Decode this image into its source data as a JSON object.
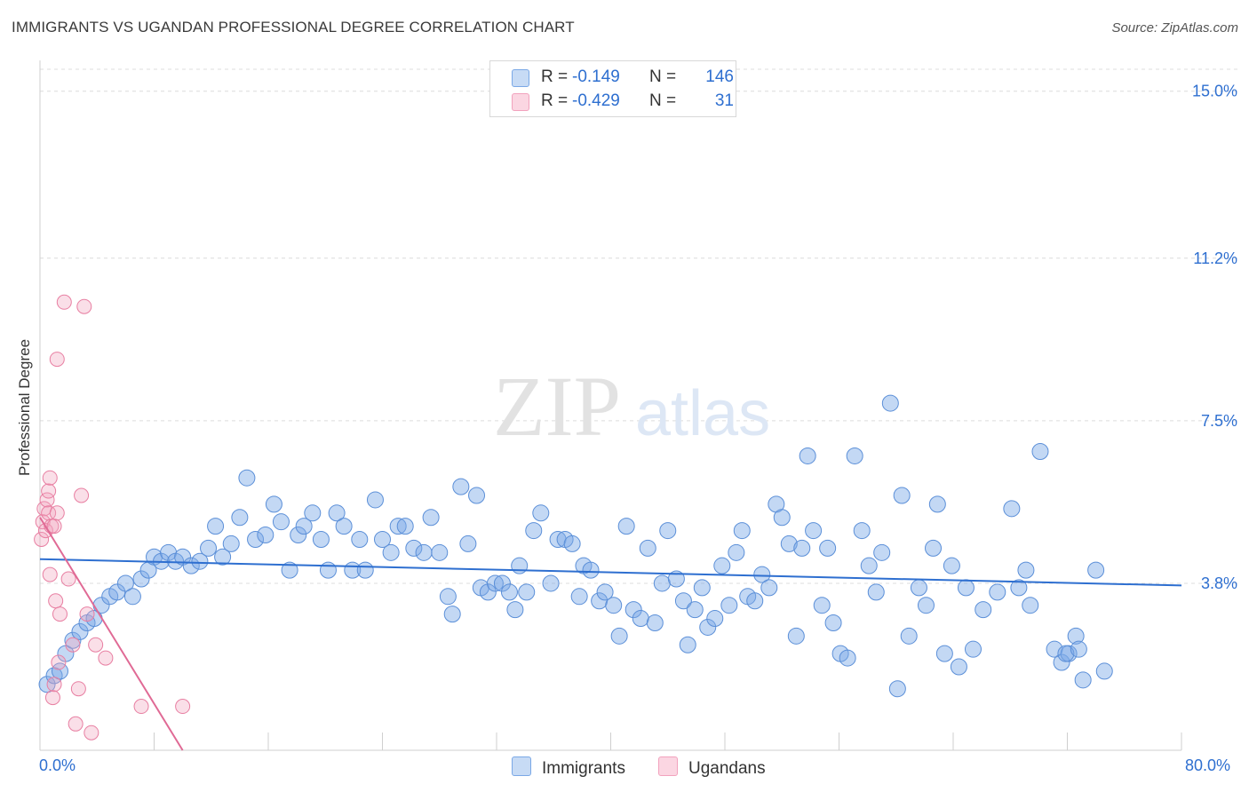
{
  "title": "IMMIGRANTS VS UGANDAN PROFESSIONAL DEGREE CORRELATION CHART",
  "source": "Source: ZipAtlas.com",
  "watermark": {
    "zip": "ZIP",
    "atlas": "atlas"
  },
  "legend": {
    "rows": [
      {
        "r_label": "R =",
        "r_value": "-0.149",
        "n_label": "N =",
        "n_value": "146",
        "color": "#7aa8e6"
      },
      {
        "r_label": "R =",
        "r_value": "-0.429",
        "n_label": "N =",
        "n_value": "31",
        "color": "#f2a2bd"
      }
    ]
  },
  "bottom_legend": {
    "immigrants": "Immigrants",
    "ugandans": "Ugandans"
  },
  "chart_data": {
    "type": "scatter",
    "title": "IMMIGRANTS VS UGANDAN PROFESSIONAL DEGREE CORRELATION CHART",
    "xlabel": "",
    "ylabel": "Professional Degree",
    "xlim": [
      0,
      80
    ],
    "ylim": [
      0,
      15.5
    ],
    "x_tick_labels": [
      "0.0%",
      "80.0%"
    ],
    "y_ticks": [
      3.8,
      7.5,
      11.2,
      15.0
    ],
    "y_tick_labels": [
      "3.8%",
      "7.5%",
      "11.2%",
      "15.0%"
    ],
    "grid": true,
    "legend_position": "top-center",
    "series": [
      {
        "name": "Immigrants",
        "color": "#7aa8e6",
        "stroke": "#5b8fd8",
        "trend": {
          "x": [
            0,
            80
          ],
          "y": [
            4.35,
            3.75
          ],
          "color": "#2e6fd0"
        },
        "points": [
          [
            0.5,
            1.5
          ],
          [
            1.0,
            1.7
          ],
          [
            1.4,
            1.8
          ],
          [
            1.8,
            2.2
          ],
          [
            2.3,
            2.5
          ],
          [
            2.8,
            2.7
          ],
          [
            3.3,
            2.9
          ],
          [
            3.8,
            3.0
          ],
          [
            4.3,
            3.3
          ],
          [
            4.9,
            3.5
          ],
          [
            5.4,
            3.6
          ],
          [
            6.0,
            3.8
          ],
          [
            6.5,
            3.5
          ],
          [
            7.1,
            3.9
          ],
          [
            7.6,
            4.1
          ],
          [
            8.0,
            4.4
          ],
          [
            8.5,
            4.3
          ],
          [
            9.0,
            4.5
          ],
          [
            9.5,
            4.3
          ],
          [
            10.0,
            4.4
          ],
          [
            10.6,
            4.2
          ],
          [
            11.2,
            4.3
          ],
          [
            11.8,
            4.6
          ],
          [
            12.3,
            5.1
          ],
          [
            12.8,
            4.4
          ],
          [
            13.4,
            4.7
          ],
          [
            14.0,
            5.3
          ],
          [
            14.5,
            6.2
          ],
          [
            15.1,
            4.8
          ],
          [
            15.8,
            4.9
          ],
          [
            16.4,
            5.6
          ],
          [
            16.9,
            5.2
          ],
          [
            17.5,
            4.1
          ],
          [
            18.1,
            4.9
          ],
          [
            18.5,
            5.1
          ],
          [
            19.1,
            5.4
          ],
          [
            19.7,
            4.8
          ],
          [
            20.2,
            4.1
          ],
          [
            20.8,
            5.4
          ],
          [
            21.3,
            5.1
          ],
          [
            21.9,
            4.1
          ],
          [
            22.4,
            4.8
          ],
          [
            22.8,
            4.1
          ],
          [
            23.5,
            5.7
          ],
          [
            24.0,
            4.8
          ],
          [
            24.6,
            4.5
          ],
          [
            25.1,
            5.1
          ],
          [
            25.6,
            5.1
          ],
          [
            26.2,
            4.6
          ],
          [
            26.9,
            4.5
          ],
          [
            27.4,
            5.3
          ],
          [
            28.0,
            4.5
          ],
          [
            28.6,
            3.5
          ],
          [
            28.9,
            3.1
          ],
          [
            29.5,
            6.0
          ],
          [
            30.0,
            4.7
          ],
          [
            30.6,
            5.8
          ],
          [
            30.9,
            3.7
          ],
          [
            31.4,
            3.6
          ],
          [
            31.9,
            3.8
          ],
          [
            32.4,
            3.8
          ],
          [
            32.9,
            3.6
          ],
          [
            33.3,
            3.2
          ],
          [
            33.6,
            4.2
          ],
          [
            34.1,
            3.6
          ],
          [
            34.6,
            5.0
          ],
          [
            35.1,
            5.4
          ],
          [
            35.8,
            3.8
          ],
          [
            36.3,
            4.8
          ],
          [
            36.8,
            4.8
          ],
          [
            37.3,
            4.7
          ],
          [
            37.8,
            3.5
          ],
          [
            38.1,
            4.2
          ],
          [
            38.6,
            4.1
          ],
          [
            39.2,
            3.4
          ],
          [
            39.6,
            3.6
          ],
          [
            40.2,
            3.3
          ],
          [
            40.6,
            2.6
          ],
          [
            41.1,
            5.1
          ],
          [
            41.6,
            3.2
          ],
          [
            42.1,
            3.0
          ],
          [
            42.6,
            4.6
          ],
          [
            43.1,
            2.9
          ],
          [
            43.6,
            3.8
          ],
          [
            44.0,
            5.0
          ],
          [
            44.6,
            3.9
          ],
          [
            45.1,
            3.4
          ],
          [
            45.4,
            2.4
          ],
          [
            45.9,
            3.2
          ],
          [
            46.4,
            3.7
          ],
          [
            46.8,
            2.8
          ],
          [
            47.3,
            3.0
          ],
          [
            47.8,
            4.2
          ],
          [
            48.3,
            3.3
          ],
          [
            48.8,
            4.5
          ],
          [
            49.2,
            5.0
          ],
          [
            49.6,
            3.5
          ],
          [
            50.1,
            3.4
          ],
          [
            50.6,
            4.0
          ],
          [
            51.1,
            3.7
          ],
          [
            51.6,
            5.6
          ],
          [
            52.0,
            5.3
          ],
          [
            52.5,
            4.7
          ],
          [
            53.0,
            2.6
          ],
          [
            53.4,
            4.6
          ],
          [
            53.8,
            6.7
          ],
          [
            54.2,
            5.0
          ],
          [
            54.8,
            3.3
          ],
          [
            55.2,
            4.6
          ],
          [
            55.6,
            2.9
          ],
          [
            56.1,
            2.2
          ],
          [
            56.6,
            2.1
          ],
          [
            57.1,
            6.7
          ],
          [
            57.6,
            5.0
          ],
          [
            58.1,
            4.2
          ],
          [
            58.6,
            3.6
          ],
          [
            59.0,
            4.5
          ],
          [
            59.6,
            7.9
          ],
          [
            60.1,
            1.4
          ],
          [
            60.4,
            5.8
          ],
          [
            60.9,
            2.6
          ],
          [
            61.6,
            3.7
          ],
          [
            62.1,
            3.3
          ],
          [
            62.6,
            4.6
          ],
          [
            62.9,
            5.6
          ],
          [
            63.4,
            2.2
          ],
          [
            63.9,
            4.2
          ],
          [
            64.4,
            1.9
          ],
          [
            64.9,
            3.7
          ],
          [
            65.4,
            2.3
          ],
          [
            66.1,
            3.2
          ],
          [
            67.1,
            3.6
          ],
          [
            68.1,
            5.5
          ],
          [
            68.6,
            3.7
          ],
          [
            69.1,
            4.1
          ],
          [
            69.4,
            3.3
          ],
          [
            70.1,
            6.8
          ],
          [
            71.1,
            2.3
          ],
          [
            71.6,
            2.0
          ],
          [
            72.1,
            2.2
          ],
          [
            72.6,
            2.6
          ],
          [
            73.1,
            1.6
          ],
          [
            74.6,
            1.8
          ],
          [
            71.9,
            2.2
          ],
          [
            74.0,
            4.1
          ],
          [
            72.8,
            2.3
          ]
        ]
      },
      {
        "name": "Ugandans",
        "color": "#f2a2bd",
        "stroke": "#e87fa2",
        "trend": {
          "x": [
            0,
            10
          ],
          "y": [
            5.3,
            0.0
          ],
          "color": "#e06a95"
        },
        "points": [
          [
            0.1,
            4.8
          ],
          [
            0.2,
            5.2
          ],
          [
            0.3,
            5.5
          ],
          [
            0.4,
            5.0
          ],
          [
            0.5,
            5.7
          ],
          [
            0.6,
            5.9
          ],
          [
            0.6,
            5.4
          ],
          [
            0.7,
            6.2
          ],
          [
            0.7,
            4.0
          ],
          [
            0.8,
            5.1
          ],
          [
            0.9,
            1.2
          ],
          [
            1.0,
            5.1
          ],
          [
            1.0,
            1.5
          ],
          [
            1.1,
            3.4
          ],
          [
            1.2,
            5.4
          ],
          [
            1.3,
            2.0
          ],
          [
            1.4,
            3.1
          ],
          [
            1.7,
            10.2
          ],
          [
            2.0,
            3.9
          ],
          [
            2.3,
            2.4
          ],
          [
            2.5,
            0.6
          ],
          [
            2.7,
            1.4
          ],
          [
            2.9,
            5.8
          ],
          [
            3.1,
            10.1
          ],
          [
            3.3,
            3.1
          ],
          [
            3.6,
            0.4
          ],
          [
            3.9,
            2.4
          ],
          [
            4.6,
            2.1
          ],
          [
            7.1,
            1.0
          ],
          [
            10.0,
            1.0
          ],
          [
            1.2,
            8.9
          ]
        ]
      }
    ]
  }
}
